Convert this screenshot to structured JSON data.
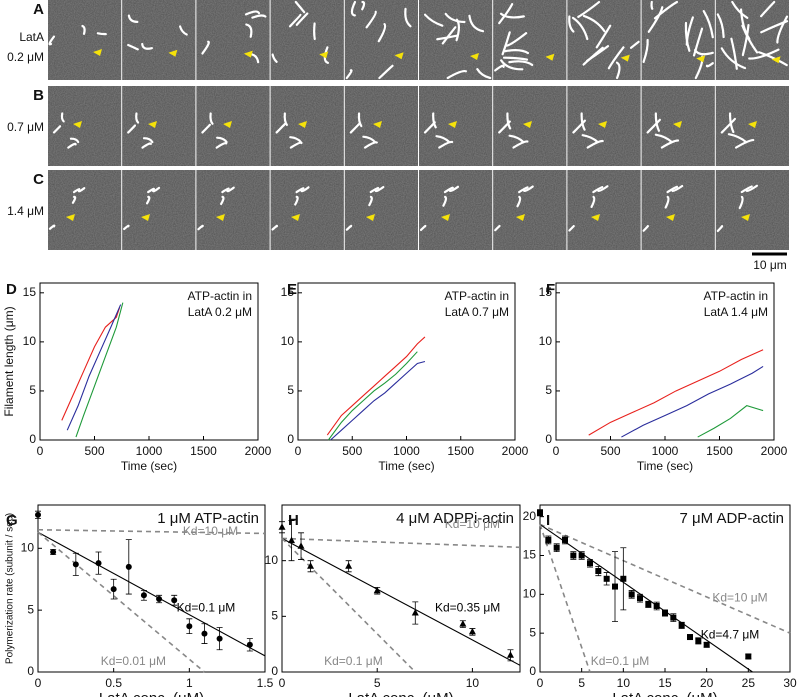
{
  "micrographs": {
    "rows": [
      {
        "label": "A",
        "text": [
          "LatA",
          "0.2 μM"
        ]
      },
      {
        "label": "B",
        "text": [
          "0.7 μM"
        ]
      },
      {
        "label": "C",
        "text": [
          "1.4 μM"
        ]
      }
    ],
    "scale_bar": "10 μm"
  },
  "chart_data": [
    {
      "type": "line",
      "panel": "D",
      "title": [
        "ATP-actin in",
        "LatA 0.2 μM"
      ],
      "x_label": "Time (sec)",
      "y_label": "Filament length (μm)",
      "xlim": [
        0,
        2000
      ],
      "xticks": [
        0,
        500,
        1000,
        1500,
        2000
      ],
      "ylim": [
        0,
        16
      ],
      "yticks": [
        0,
        5,
        10,
        15
      ],
      "series": [
        {
          "color": "#e8211d",
          "x": [
            200,
            300,
            400,
            500,
            600,
            700,
            730
          ],
          "values": [
            2,
            4.5,
            7,
            9.5,
            11.5,
            12.5,
            13.5
          ]
        },
        {
          "color": "#2a2d9c",
          "x": [
            250,
            350,
            450,
            550,
            650,
            740
          ],
          "values": [
            1,
            3.5,
            6.5,
            9,
            11.5,
            13.8
          ]
        },
        {
          "color": "#1f9a3a",
          "x": [
            330,
            400,
            500,
            600,
            700,
            760
          ],
          "values": [
            0.3,
            2.5,
            5.5,
            8.5,
            11.5,
            14
          ]
        }
      ]
    },
    {
      "type": "line",
      "panel": "E",
      "title": [
        "ATP-actin in",
        "LatA 0.7 μM"
      ],
      "x_label": "Time (sec)",
      "xlim": [
        0,
        2000
      ],
      "xticks": [
        0,
        500,
        1000,
        1500,
        2000
      ],
      "ylim": [
        0,
        16
      ],
      "yticks": [
        0,
        5,
        10,
        15
      ],
      "series": [
        {
          "color": "#e8211d",
          "x": [
            270,
            400,
            500,
            600,
            700,
            800,
            900,
            1000,
            1100,
            1170
          ],
          "values": [
            0.5,
            2.5,
            3.5,
            4.5,
            5.5,
            6.5,
            7.5,
            8.5,
            9.8,
            10.5
          ]
        },
        {
          "color": "#1f9a3a",
          "x": [
            280,
            400,
            500,
            600,
            700,
            800,
            900,
            1000,
            1100
          ],
          "values": [
            0,
            1.8,
            3,
            4,
            5,
            5.8,
            6.7,
            7.8,
            9
          ]
        },
        {
          "color": "#2a2d9c",
          "x": [
            300,
            400,
            500,
            600,
            700,
            800,
            900,
            1000,
            1100,
            1170
          ],
          "values": [
            0,
            1,
            2,
            3,
            4,
            4.8,
            5.8,
            6.8,
            7.8,
            8
          ]
        }
      ]
    },
    {
      "type": "line",
      "panel": "F",
      "title": [
        "ATP-actin in",
        "LatA 1.4 μM"
      ],
      "x_label": "Time (sec)",
      "xlim": [
        0,
        2000
      ],
      "xticks": [
        0,
        500,
        1000,
        1500,
        2000
      ],
      "ylim": [
        0,
        16
      ],
      "yticks": [
        0,
        5,
        10,
        15
      ],
      "series": [
        {
          "color": "#e8211d",
          "x": [
            300,
            500,
            700,
            900,
            1100,
            1300,
            1500,
            1700,
            1900
          ],
          "values": [
            0.5,
            1.8,
            2.8,
            3.8,
            5,
            6,
            7,
            8.2,
            9.2
          ]
        },
        {
          "color": "#2a2d9c",
          "x": [
            600,
            800,
            1000,
            1200,
            1400,
            1600,
            1800,
            1900
          ],
          "values": [
            0.3,
            1.5,
            2.5,
            3.5,
            4.7,
            5.7,
            6.8,
            7.5
          ]
        },
        {
          "color": "#1f9a3a",
          "x": [
            1300,
            1450,
            1600,
            1750,
            1900
          ],
          "values": [
            0.3,
            1.2,
            2.2,
            3.5,
            3
          ]
        }
      ]
    },
    {
      "type": "scatter",
      "panel": "G",
      "title": [
        "1 μM ATP-actin"
      ],
      "x_label": "LatA conc. (μM)",
      "y_label": "Polymerization rate (subunit / sec)",
      "xlim": [
        0,
        1.5
      ],
      "xticks": [
        0,
        0.5,
        1,
        1.5
      ],
      "ylim": [
        0,
        13.5
      ],
      "yticks": [
        0,
        5,
        10
      ],
      "series": [
        {
          "name": "Kd=10 μM",
          "color": "#888888",
          "dashed": true,
          "x": [
            0,
            1.5
          ],
          "values": [
            11.5,
            11.2
          ]
        },
        {
          "name": "Kd=0.1 μM",
          "color": "#000000",
          "dashed": false,
          "x": [
            0,
            1.5
          ],
          "values": [
            11.3,
            1.3
          ]
        },
        {
          "name": "Kd=0.01 μM",
          "color": "#888888",
          "dashed": true,
          "x": [
            0,
            1.1
          ],
          "values": [
            11.3,
            0
          ]
        },
        {
          "color": "#000000",
          "marker": "circle",
          "x": [
            0,
            0.1,
            0.25,
            0.4,
            0.5,
            0.6,
            0.7,
            0.8,
            0.9,
            1.0,
            1.1,
            1.2,
            1.4
          ],
          "values": [
            12.7,
            9.7,
            8.7,
            8.8,
            6.7,
            8.5,
            6.2,
            5.9,
            5.8,
            3.7,
            3.1,
            2.7,
            2.2
          ],
          "errors": [
            0.3,
            0.2,
            0.9,
            0.9,
            0.8,
            2.2,
            0.4,
            0.3,
            0.4,
            0.6,
            0.8,
            0.9,
            0.5
          ]
        }
      ]
    },
    {
      "type": "scatter",
      "panel": "H",
      "title": [
        "4 μM ADPPi-actin"
      ],
      "x_label": "LatA conc. (μM)",
      "xlim": [
        0,
        12.5
      ],
      "xticks": [
        0,
        5,
        10
      ],
      "ylim": [
        0,
        15
      ],
      "yticks": [
        0,
        5,
        10
      ],
      "series": [
        {
          "name": "Kd=10 μM",
          "color": "#888888",
          "dashed": true,
          "x": [
            0,
            12.5
          ],
          "values": [
            12,
            11.2
          ]
        },
        {
          "name": "Kd=0.35 μM",
          "color": "#000000",
          "dashed": false,
          "x": [
            0,
            12.5
          ],
          "values": [
            12,
            0.6
          ]
        },
        {
          "name": "Kd=0.1 μM",
          "color": "#888888",
          "dashed": true,
          "x": [
            0,
            7
          ],
          "values": [
            12,
            0
          ]
        },
        {
          "color": "#000000",
          "marker": "triangle",
          "x": [
            0,
            0.5,
            1,
            1.5,
            3.5,
            5,
            7,
            9.5,
            10,
            12
          ],
          "values": [
            13,
            11.8,
            11.3,
            9.5,
            9.5,
            7.3,
            5.3,
            4.3,
            3.6,
            1.5
          ],
          "errors": [
            0.5,
            1.8,
            1.2,
            0.5,
            0.5,
            0.3,
            1.0,
            0.3,
            0.3,
            0.5
          ]
        }
      ]
    },
    {
      "type": "scatter",
      "panel": "I",
      "title": [
        "7 μM ADP-actin"
      ],
      "x_label": "LatA conc. (μM)",
      "xlim": [
        0,
        30
      ],
      "xticks": [
        0,
        5,
        10,
        15,
        20,
        25,
        30
      ],
      "ylim": [
        0,
        21.5
      ],
      "yticks": [
        0,
        5,
        10,
        15,
        20
      ],
      "series": [
        {
          "name": "Kd=10 μM",
          "color": "#888888",
          "dashed": true,
          "x": [
            0,
            30
          ],
          "values": [
            19,
            5
          ]
        },
        {
          "name": "Kd=4.7 μM",
          "color": "#000000",
          "dashed": false,
          "x": [
            0,
            25.5
          ],
          "values": [
            19,
            0
          ]
        },
        {
          "name": "Kd=0.1 μM",
          "color": "#888888",
          "dashed": true,
          "x": [
            0,
            6
          ],
          "values": [
            19,
            0
          ]
        },
        {
          "color": "#000000",
          "marker": "square",
          "x": [
            0,
            1,
            2,
            3,
            4,
            5,
            6,
            7,
            8,
            9,
            10,
            11,
            12,
            13,
            14,
            15,
            16,
            17,
            18,
            19,
            20,
            25
          ],
          "values": [
            20.5,
            17,
            16,
            17,
            15,
            15,
            14,
            13,
            12,
            11,
            12,
            10,
            9.5,
            8.7,
            8.5,
            7.6,
            7,
            6,
            4.5,
            4,
            3.5,
            2
          ],
          "errors": [
            0.4,
            0.5,
            0.5,
            0.5,
            0.5,
            0.5,
            0.5,
            0.6,
            0.8,
            4.5,
            4,
            0.5,
            0.5,
            0.4,
            0.5,
            0.4,
            0.5,
            0.4,
            0.3,
            0.4,
            0.3,
            0.3
          ]
        }
      ]
    }
  ]
}
